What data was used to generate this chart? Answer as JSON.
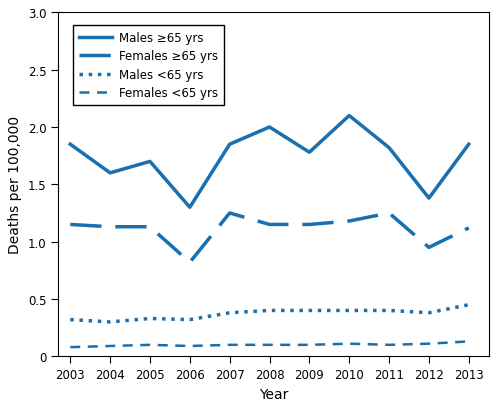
{
  "years": [
    2003,
    2004,
    2005,
    2006,
    2007,
    2008,
    2009,
    2010,
    2011,
    2012,
    2013
  ],
  "males_ge65": [
    1.85,
    1.6,
    1.7,
    1.3,
    1.85,
    2.0,
    1.78,
    2.1,
    1.82,
    1.38,
    1.85
  ],
  "females_ge65": [
    1.15,
    1.13,
    1.13,
    0.82,
    1.25,
    1.15,
    1.15,
    1.18,
    1.25,
    0.95,
    1.12
  ],
  "males_lt65": [
    0.32,
    0.3,
    0.33,
    0.32,
    0.38,
    0.4,
    0.4,
    0.4,
    0.4,
    0.38,
    0.45
  ],
  "females_lt65": [
    0.08,
    0.09,
    0.1,
    0.09,
    0.1,
    0.1,
    0.1,
    0.11,
    0.1,
    0.11,
    0.13
  ],
  "color": "#1a6faf",
  "ylim": [
    0,
    3.0
  ],
  "yticks": [
    0,
    0.5,
    1.0,
    1.5,
    2.0,
    2.5,
    3.0
  ],
  "xlabel": "Year",
  "ylabel": "Deaths per 100,000",
  "legend_labels": [
    "Males ≥65 yrs",
    "Females ≥65 yrs",
    "Males <65 yrs",
    "Females <65 yrs"
  ]
}
